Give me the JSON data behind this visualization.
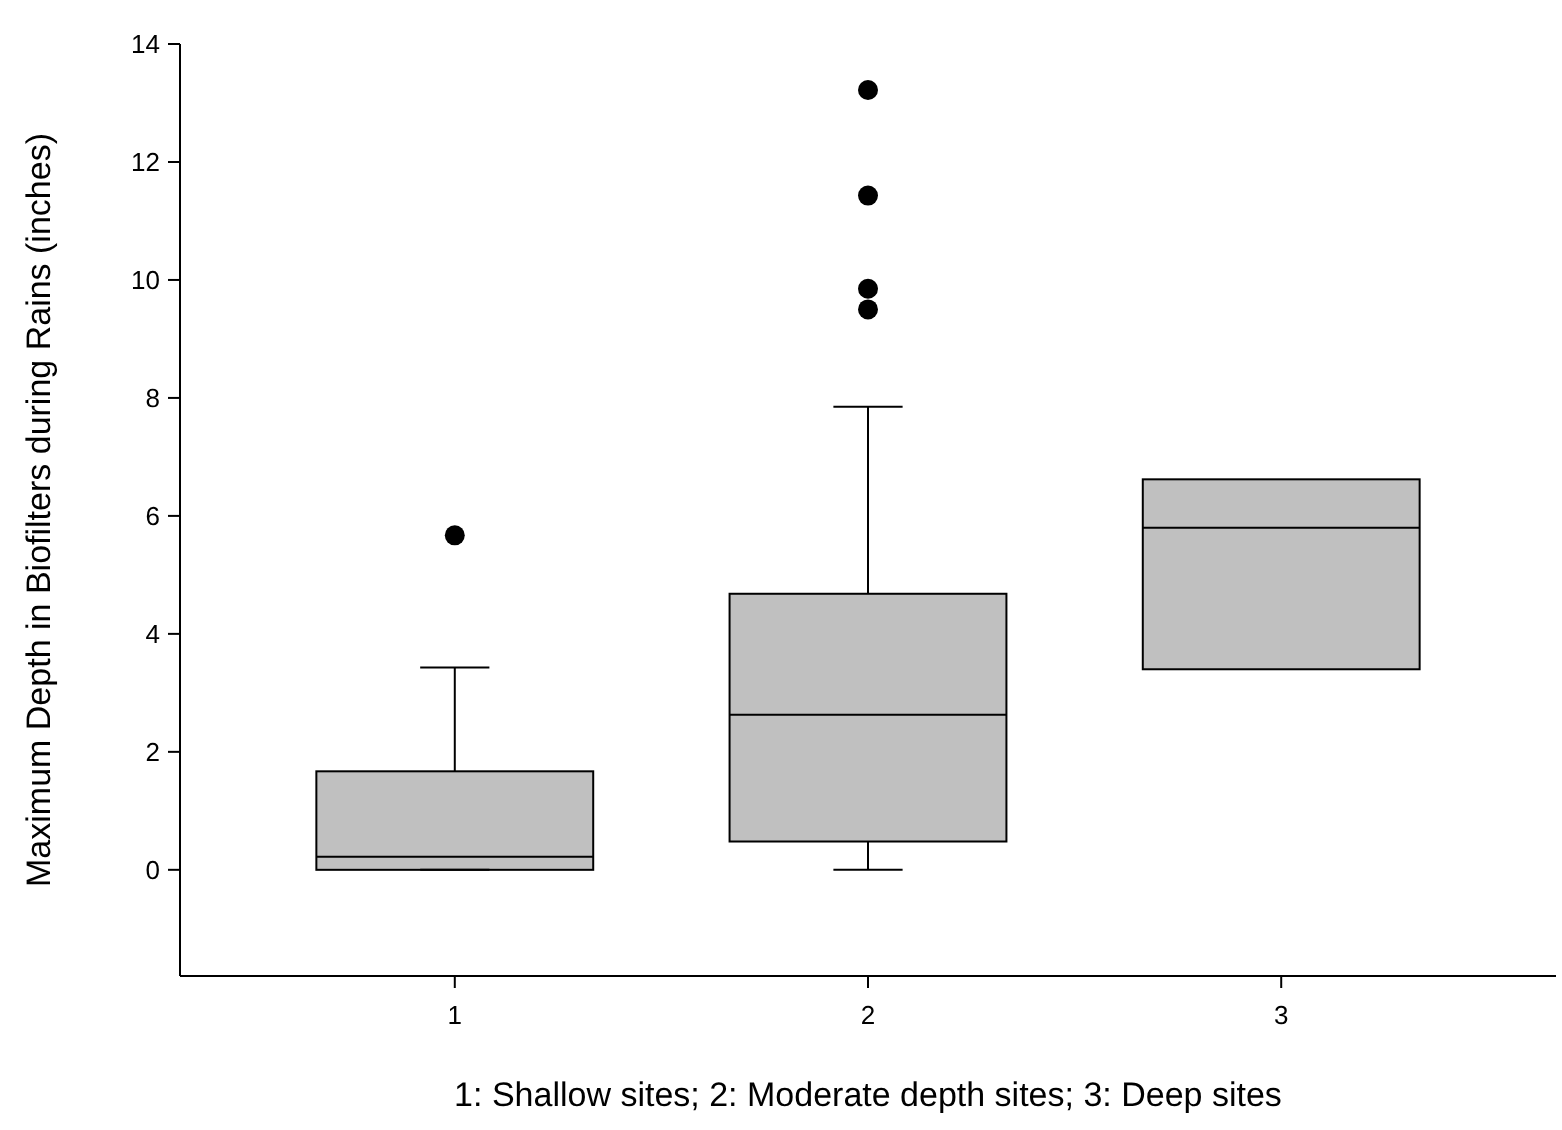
{
  "chart_data": {
    "type": "box",
    "xlabel": "1: Shallow sites; 2: Moderate depth sites; 3: Deep sites",
    "ylabel": "Maximum Depth in Biofilters during Rains (inches)",
    "categories": [
      "1",
      "2",
      "3"
    ],
    "series": [
      {
        "color": "#c0c0c0",
        "boxes": [
          {
            "low": 0,
            "q1": 0,
            "median": 0.22,
            "q3": 1.67,
            "high": 3.43,
            "outliers": [
              5.67
            ]
          },
          {
            "low": 0,
            "q1": 0.48,
            "median": 2.63,
            "q3": 4.68,
            "high": 7.85,
            "outliers": [
              9.5,
              9.85,
              11.43,
              13.22
            ]
          },
          {
            "low": 3.4,
            "q1": 3.4,
            "median": 5.8,
            "q3": 6.62,
            "high": 6.62
          }
        ]
      }
    ],
    "ylim": [
      -1.8,
      14
    ],
    "yticks": [
      0,
      2,
      4,
      6,
      8,
      10,
      12,
      14
    ],
    "grid": false
  }
}
